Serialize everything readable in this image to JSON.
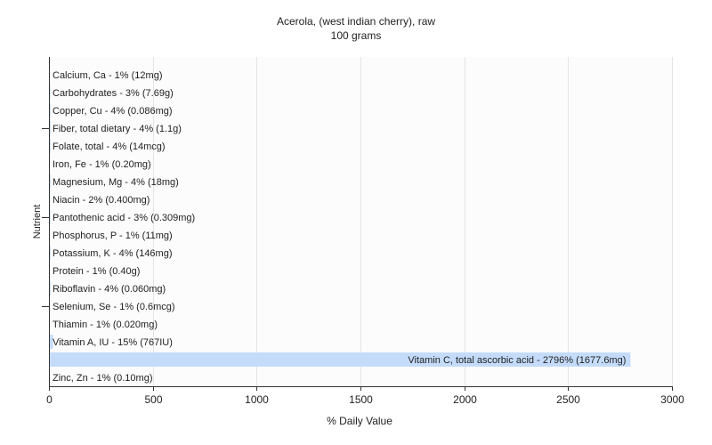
{
  "chart_data": {
    "type": "bar",
    "orientation": "horizontal",
    "title": "Acerola, (west indian cherry), raw",
    "subtitle": "100 grams",
    "xlabel": "% Daily Value",
    "ylabel": "Nutrient",
    "xlim": [
      0,
      3000
    ],
    "xticks": [
      0,
      500,
      1000,
      1500,
      2000,
      2500,
      3000
    ],
    "grid": "vertical",
    "bar_color": "#c4dcfa",
    "categories": [
      "Calcium, Ca - 1% (12mg)",
      "Carbohydrates - 3% (7.69g)",
      "Copper, Cu - 4% (0.086mg)",
      "Fiber, total dietary - 4% (1.1g)",
      "Folate, total - 4% (14mcg)",
      "Iron, Fe - 1% (0.20mg)",
      "Magnesium, Mg - 4% (18mg)",
      "Niacin - 2% (0.400mg)",
      "Pantothenic acid - 3% (0.309mg)",
      "Phosphorus, P - 1% (11mg)",
      "Potassium, K - 4% (146mg)",
      "Protein - 1% (0.40g)",
      "Riboflavin - 4% (0.060mg)",
      "Selenium, Se - 1% (0.6mcg)",
      "Thiamin - 1% (0.020mg)",
      "Vitamin A, IU - 15% (767IU)",
      "Vitamin C, total ascorbic acid - 2796% (1677.6mg)",
      "Zinc, Zn - 1% (0.10mg)"
    ],
    "values": [
      1,
      3,
      4,
      4,
      4,
      1,
      4,
      2,
      3,
      1,
      4,
      1,
      4,
      1,
      1,
      15,
      2796,
      1
    ]
  }
}
